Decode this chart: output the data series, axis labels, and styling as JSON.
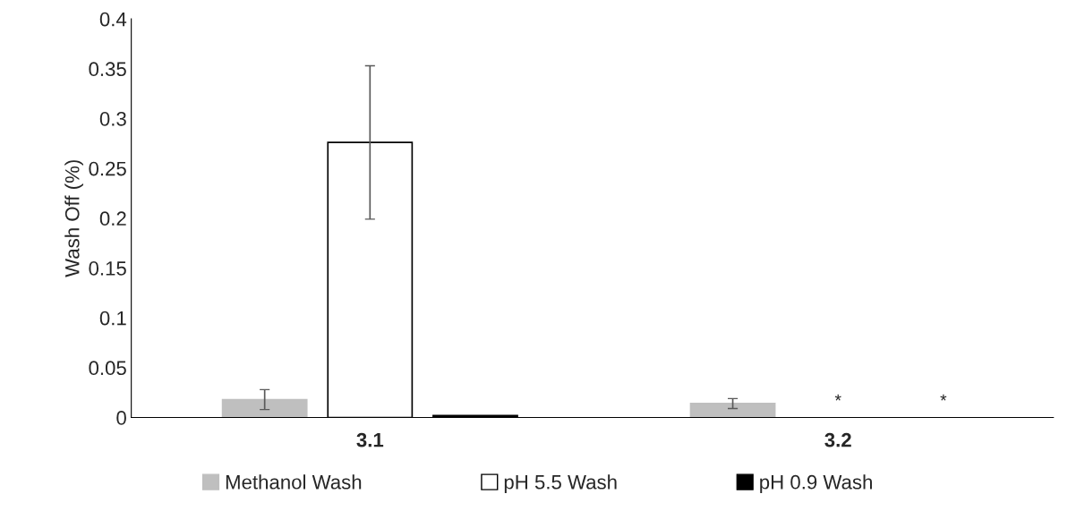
{
  "chart_data": {
    "type": "bar",
    "ylabel": "Wash Off (%)",
    "categories": [
      "3.1",
      "3.2"
    ],
    "series": [
      {
        "name": "Methanol Wash",
        "color": "#bfbfbf",
        "values": [
          0.018,
          0.014
        ],
        "errors": [
          0.01,
          0.005
        ]
      },
      {
        "name": "pH 5.5 Wash",
        "color": "#ffffff",
        "values": [
          0.276,
          null
        ],
        "errors": [
          0.077,
          null
        ],
        "value_labels": [
          null,
          "*"
        ]
      },
      {
        "name": "pH 0.9 Wash",
        "color": "#000000",
        "values": [
          0.002,
          null
        ],
        "value_labels": [
          null,
          "*"
        ]
      }
    ],
    "ylim": [
      0,
      0.4
    ],
    "yticks": [
      0,
      0.05,
      0.1,
      0.15,
      0.2,
      0.25,
      0.3,
      0.35,
      0.4
    ],
    "grid": false,
    "legend": "bottom"
  }
}
